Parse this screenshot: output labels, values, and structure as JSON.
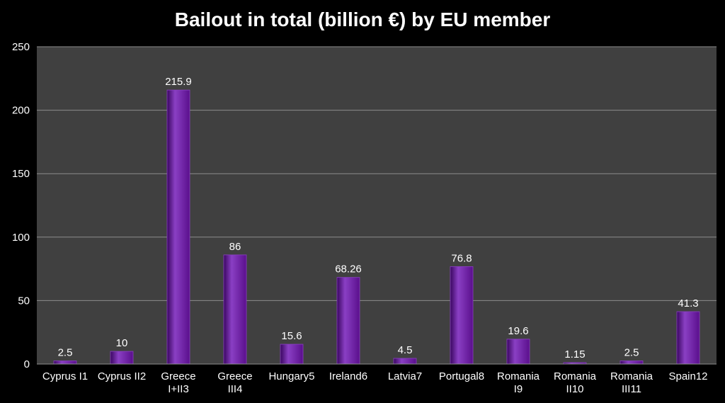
{
  "chart_data": {
    "type": "bar",
    "title": "Bailout in total (billion €) by EU member",
    "xlabel": "",
    "ylabel": "",
    "ylim": [
      0,
      250
    ],
    "yticks": [
      0,
      50,
      100,
      150,
      200,
      250
    ],
    "grid": true,
    "legend": "none",
    "categories": [
      [
        "Cyprus I1"
      ],
      [
        "Cyprus II2"
      ],
      [
        "Greece",
        "I+II3"
      ],
      [
        "Greece",
        "III4"
      ],
      [
        "Hungary5"
      ],
      [
        "Ireland6"
      ],
      [
        "Latvia7"
      ],
      [
        "Portugal8"
      ],
      [
        "Romania",
        "I9"
      ],
      [
        "Romania",
        "II10"
      ],
      [
        "Romania",
        "III11"
      ],
      [
        "Spain12"
      ]
    ],
    "values": [
      2.5,
      10,
      215.9,
      86,
      15.6,
      68.26,
      4.5,
      76.8,
      19.6,
      1.15,
      2.5,
      41.3
    ],
    "value_labels": [
      "2.5",
      "10",
      "215.9",
      "86",
      "15.6",
      "68.26",
      "4.5",
      "76.8",
      "19.6",
      "1.15",
      "2.5",
      "41.3"
    ],
    "colors": {
      "background": "#000000",
      "plot_area": "#404040",
      "bar": "#5a0f8c",
      "bar_light": "#8a3fc4",
      "bar_dark": "#3a0660",
      "grid": "#8c8c8c",
      "text": "#ffffff"
    }
  }
}
